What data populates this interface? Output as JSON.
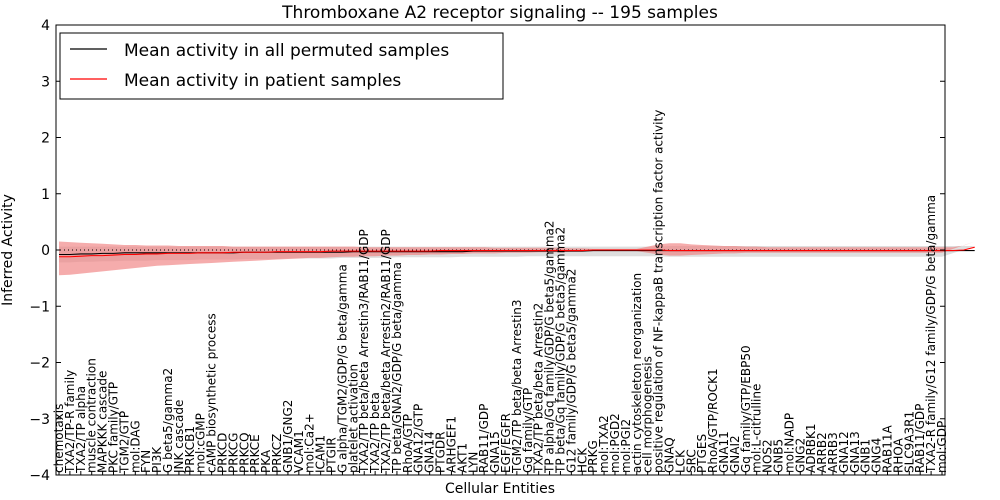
{
  "chart_data": {
    "type": "line",
    "title": "Thromboxane A2 receptor signaling -- 195 samples",
    "xlabel": "Cellular Entities",
    "ylabel": "Inferred Activity",
    "ylim": [
      -4,
      4
    ],
    "yticks": [
      -4,
      -3,
      -2,
      -1,
      0,
      1,
      2,
      3,
      4
    ],
    "ytick_labels": [
      "−4",
      "−3",
      "−2",
      "−1",
      "0",
      "1",
      "2",
      "3",
      "4"
    ],
    "grid": false,
    "legend_position": "top-left",
    "entities": [
      "chemotaxis",
      "TXA2/TP-R family",
      "TXA2/TP alpha",
      "muscle contraction",
      "MAPKKK cascade",
      "PKC family/GTP",
      "TGM2/GTP",
      "mol:DAG",
      "FYN",
      "PI3K",
      "G beta5/gamma2",
      "JNK cascade",
      "PRKCB1",
      "mol:cGMP",
      "cAMP biosynthetic process",
      "PRKCD",
      "PRKCG",
      "PRKCQ",
      "PRKCE",
      "PKA",
      "PRKCZ",
      "GNB1/GNG2",
      "VCAM1",
      "mol:Ca2+",
      "ICAM1",
      "PTGIR",
      "G alpha/TGM2/GDP/G beta/gamma",
      "platelet activation",
      "TXA2/TP beta/beta Arrestin3/RAB11/GDP",
      "TXA2/TP beta",
      "TXA2/TP beta/beta Arrestin2/RAB11/GDP",
      "TP beta/GNAI2/GDP/G beta/gamma",
      "RhoA/GTP",
      "GNA12/GTP",
      "GNA14",
      "PTGDR",
      "ARHGEF1",
      "AKT1",
      "LYN",
      "RAB11/GDP",
      "GNA15",
      "EGF/EGFR",
      "TGM2/TP beta/beta Arrestin3",
      "Gq family/GTP",
      "TXA2/TP beta/beta Arrestin2",
      "TP alpha/Gq family/GDP/G beta5/gamma2",
      "TP beta/Gq family/GDP/G beta5/gamma2",
      "G12 family/GDP/G beta5/gamma2",
      "HCK",
      "PRKG",
      "mol:TXA2",
      "mol:PGD2",
      "mol:PGI2",
      "actin cytoskeleton reorganization",
      "cell morphogenesis",
      "positive regulation of NF-kappaB transcription factor activity",
      "GNAQ",
      "LCK",
      "SRC",
      "PTGES",
      "RhoA/GTP/ROCK1",
      "GNA11",
      "GNAI2",
      "Gq family/GTP/EBP50",
      "mol:L-citrulline",
      "NOS2",
      "GNB5",
      "mol:NADP",
      "GNG2",
      "ADRBK1",
      "ARRB2",
      "ARRB3",
      "GNA12",
      "GNA13",
      "GNB1",
      "GNG4",
      "RAB11A",
      "RHOA",
      "SLC9A3R1",
      "RAB11/GDP",
      "TXA2-R family/G12 family/GDP/G beta/gamma",
      "mol:GDP"
    ],
    "series": [
      {
        "name": "Mean activity in all permuted samples",
        "color": "#000000",
        "values": [
          -0.08,
          -0.08,
          -0.07,
          -0.07,
          -0.06,
          -0.06,
          -0.05,
          -0.05,
          -0.05,
          -0.05,
          -0.05,
          -0.05,
          -0.05,
          -0.05,
          -0.05,
          -0.05,
          -0.05,
          -0.04,
          -0.04,
          -0.04,
          -0.04,
          -0.04,
          -0.04,
          -0.04,
          -0.04,
          -0.04,
          -0.04,
          -0.03,
          -0.03,
          -0.03,
          -0.03,
          -0.03,
          -0.03,
          -0.03,
          -0.03,
          -0.03,
          -0.03,
          -0.03,
          -0.02,
          -0.02,
          -0.02,
          -0.02,
          -0.02,
          -0.02,
          -0.02,
          -0.02,
          -0.02,
          -0.02,
          -0.02,
          -0.01,
          -0.01,
          -0.01,
          -0.01,
          -0.01,
          -0.01,
          -0.01,
          -0.01,
          -0.01,
          -0.01,
          -0.01,
          -0.01,
          -0.01,
          -0.01,
          -0.01,
          -0.01,
          -0.01,
          -0.01,
          -0.01,
          -0.01,
          -0.01,
          -0.01,
          -0.01,
          -0.01,
          -0.01,
          -0.01,
          -0.01,
          -0.01,
          -0.01,
          -0.01,
          -0.01,
          -0.01,
          -0.01,
          -0.01,
          -0.01,
          -0.01
        ],
        "band_low": [
          -0.22,
          -0.22,
          -0.21,
          -0.21,
          -0.2,
          -0.2,
          -0.19,
          -0.19,
          -0.19,
          -0.18,
          -0.18,
          -0.18,
          -0.18,
          -0.17,
          -0.17,
          -0.17,
          -0.17,
          -0.16,
          -0.16,
          -0.16,
          -0.16,
          -0.15,
          -0.15,
          -0.15,
          -0.15,
          -0.15,
          -0.14,
          -0.14,
          -0.14,
          -0.14,
          -0.14,
          -0.13,
          -0.13,
          -0.13,
          -0.13,
          -0.13,
          -0.13,
          -0.12,
          -0.12,
          -0.12,
          -0.12,
          -0.12,
          -0.12,
          -0.11,
          -0.11,
          -0.11,
          -0.11,
          -0.11,
          -0.11,
          -0.11,
          -0.11,
          -0.11,
          -0.11,
          -0.11,
          -0.11,
          -0.11,
          -0.12,
          -0.12,
          -0.12,
          -0.12,
          -0.12,
          -0.12,
          -0.12,
          -0.12,
          -0.12,
          -0.12,
          -0.12,
          -0.12,
          -0.12,
          -0.12,
          -0.12,
          -0.12,
          -0.12,
          -0.12,
          -0.12,
          -0.12,
          -0.12,
          -0.12,
          -0.12,
          -0.12,
          -0.12,
          -0.12,
          -0.12,
          -0.12,
          -0.12
        ],
        "band_high": [
          0.06,
          0.06,
          0.06,
          0.06,
          0.06,
          0.06,
          0.06,
          0.06,
          0.06,
          0.06,
          0.06,
          0.06,
          0.06,
          0.06,
          0.06,
          0.06,
          0.06,
          0.06,
          0.06,
          0.06,
          0.06,
          0.06,
          0.06,
          0.06,
          0.06,
          0.06,
          0.06,
          0.06,
          0.06,
          0.06,
          0.06,
          0.06,
          0.06,
          0.06,
          0.06,
          0.06,
          0.06,
          0.06,
          0.06,
          0.06,
          0.06,
          0.06,
          0.06,
          0.06,
          0.06,
          0.06,
          0.06,
          0.06,
          0.06,
          0.06,
          0.06,
          0.06,
          0.06,
          0.06,
          0.06,
          0.06,
          0.07,
          0.07,
          0.07,
          0.07,
          0.07,
          0.07,
          0.07,
          0.07,
          0.07,
          0.07,
          0.07,
          0.07,
          0.07,
          0.07,
          0.07,
          0.07,
          0.07,
          0.07,
          0.07,
          0.07,
          0.07,
          0.07,
          0.07,
          0.07,
          0.07,
          0.07,
          0.07,
          0.07,
          0.07
        ],
        "band_color": "#c8c8c8"
      },
      {
        "name": "Mean activity in patient samples",
        "color": "#ff0000",
        "values": [
          -0.12,
          -0.12,
          -0.11,
          -0.1,
          -0.1,
          -0.09,
          -0.08,
          -0.08,
          -0.07,
          -0.07,
          -0.06,
          -0.06,
          -0.06,
          -0.05,
          -0.05,
          -0.05,
          -0.04,
          -0.04,
          -0.04,
          -0.04,
          -0.03,
          -0.03,
          -0.03,
          -0.03,
          -0.03,
          -0.02,
          -0.02,
          -0.02,
          -0.02,
          -0.02,
          -0.02,
          -0.02,
          -0.02,
          -0.02,
          -0.02,
          -0.01,
          -0.01,
          -0.01,
          -0.01,
          -0.01,
          -0.01,
          -0.01,
          -0.01,
          -0.01,
          -0.01,
          -0.01,
          -0.01,
          -0.01,
          -0.01,
          0.0,
          0.0,
          0.0,
          0.0,
          0.0,
          0.0,
          0.0,
          -0.01,
          -0.01,
          -0.01,
          -0.01,
          -0.01,
          -0.01,
          -0.01,
          -0.01,
          -0.01,
          -0.01,
          -0.01,
          -0.01,
          -0.01,
          -0.01,
          -0.01,
          -0.01,
          -0.01,
          -0.01,
          -0.01,
          -0.01,
          -0.01,
          -0.01,
          -0.01,
          -0.01,
          -0.01,
          -0.01,
          -0.01,
          0.0,
          0.05
        ],
        "band_low": [
          -0.45,
          -0.44,
          -0.42,
          -0.4,
          -0.38,
          -0.36,
          -0.34,
          -0.32,
          -0.3,
          -0.28,
          -0.27,
          -0.26,
          -0.25,
          -0.24,
          -0.23,
          -0.22,
          -0.21,
          -0.2,
          -0.19,
          -0.18,
          -0.17,
          -0.16,
          -0.15,
          -0.14,
          -0.14,
          -0.13,
          -0.12,
          -0.12,
          -0.11,
          -0.11,
          -0.1,
          -0.1,
          -0.09,
          -0.09,
          -0.08,
          -0.08,
          -0.07,
          -0.07,
          -0.06,
          -0.06,
          -0.06,
          -0.05,
          -0.05,
          -0.05,
          -0.04,
          -0.04,
          -0.04,
          -0.03,
          -0.03,
          -0.02,
          -0.02,
          -0.02,
          -0.02,
          -0.02,
          -0.05,
          -0.08,
          -0.1,
          -0.1,
          -0.09,
          -0.08,
          -0.07,
          -0.06,
          -0.06,
          -0.05,
          -0.05,
          -0.05,
          -0.05,
          -0.05,
          -0.05,
          -0.05,
          -0.05,
          -0.05,
          -0.05,
          -0.05,
          -0.05,
          -0.05,
          -0.05,
          -0.05,
          -0.05,
          -0.05,
          -0.05,
          -0.05,
          -0.05,
          -0.04,
          -0.02
        ],
        "band_high": [
          0.15,
          0.14,
          0.13,
          0.12,
          0.11,
          0.1,
          0.09,
          0.09,
          0.08,
          0.08,
          0.08,
          0.07,
          0.07,
          0.07,
          0.07,
          0.07,
          0.06,
          0.06,
          0.06,
          0.06,
          0.06,
          0.06,
          0.06,
          0.06,
          0.06,
          0.06,
          0.06,
          0.06,
          0.05,
          0.05,
          0.05,
          0.05,
          0.05,
          0.05,
          0.05,
          0.05,
          0.05,
          0.05,
          0.05,
          0.05,
          0.04,
          0.04,
          0.04,
          0.04,
          0.04,
          0.04,
          0.04,
          0.03,
          0.03,
          0.02,
          0.02,
          0.02,
          0.02,
          0.02,
          0.06,
          0.1,
          0.12,
          0.12,
          0.1,
          0.09,
          0.08,
          0.07,
          0.07,
          0.06,
          0.06,
          0.05,
          0.05,
          0.05,
          0.05,
          0.05,
          0.05,
          0.05,
          0.05,
          0.05,
          0.05,
          0.05,
          0.05,
          0.05,
          0.05,
          0.05,
          0.05,
          0.05,
          0.05,
          0.08,
          0.15
        ],
        "band_color": "#f08080"
      }
    ]
  }
}
